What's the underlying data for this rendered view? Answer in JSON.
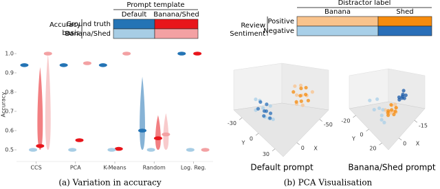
{
  "chart_data": [
    {
      "type": "strip",
      "caption": "(a) Variation in accuracy",
      "ylabel": "Accuracy",
      "categories": [
        "CCS",
        "PCA",
        "K-Means",
        "Random",
        "Log. Reg."
      ],
      "ylim": [
        0.45,
        1.02
      ],
      "yticks": [
        0.5,
        0.6,
        0.7,
        0.8,
        0.9,
        {
          "value": 1.0,
          "label": "1.0"
        }
      ],
      "legend": {
        "title": "Prompt template",
        "columns": [
          "Default",
          "Banana/Shed"
        ],
        "row_title": "Accuracy basis",
        "rows": [
          "Ground truth",
          "Banana/Shed"
        ]
      },
      "series": [
        {
          "color": "#2474b5",
          "values": [
            0.94,
            0.94,
            0.94,
            0.6,
            1.0
          ],
          "ranges": [
            null,
            null,
            null,
            [
              0.5,
              0.88
            ],
            null
          ]
        },
        {
          "color": "#e8151b",
          "values": [
            0.52,
            0.55,
            0.505,
            0.56,
            1.0
          ],
          "ranges": [
            [
              0.5,
              0.93
            ],
            null,
            null,
            [
              0.5,
              0.68
            ],
            null
          ]
        },
        {
          "color": "#a7cde5",
          "values": [
            0.5,
            0.5,
            0.5,
            0.5,
            0.5
          ],
          "ranges": [
            null,
            null,
            null,
            null,
            null
          ]
        },
        {
          "color": "#f3a1a3",
          "values": [
            1.0,
            0.95,
            1.0,
            0.58,
            0.5
          ],
          "ranges": [
            [
              0.5,
              1.0
            ],
            null,
            null,
            [
              0.5,
              0.69
            ],
            null
          ]
        }
      ]
    },
    {
      "type": "scatter3d",
      "title": "Default prompt",
      "caption": "(b) PCA Visualisation",
      "xlabel": "X",
      "ylabel": "Y",
      "xlim": [
        -70,
        30
      ],
      "xticks": [
        -50,
        0
      ],
      "ylim": [
        -45,
        45
      ],
      "yticks": [
        -30,
        0,
        30
      ],
      "legend": {
        "title": "Distractor label",
        "columns": [
          "Banana",
          "Shed"
        ],
        "row_title": "Review Sentiment",
        "rows": [
          "Positive",
          "Negative"
        ]
      },
      "series": [
        {
          "color": "#f9c38c",
          "x": [
            -30,
            -40,
            -25,
            -45,
            -35,
            -20,
            -50,
            -38
          ],
          "y": [
            20,
            30,
            35,
            15,
            25,
            28,
            32,
            10
          ]
        },
        {
          "color": "#f68b0c",
          "x": [
            -33,
            -42,
            -28,
            -36,
            -48,
            -22,
            -40,
            -30
          ],
          "y": [
            24,
            18,
            30,
            36,
            22,
            26,
            28,
            14
          ]
        },
        {
          "color": "#a8cfe8",
          "x": [
            20,
            28,
            15,
            25,
            10,
            30,
            22,
            18
          ],
          "y": [
            0,
            10,
            -10,
            15,
            5,
            -5,
            20,
            -15
          ]
        },
        {
          "color": "#2a6fb8",
          "x": [
            22,
            26,
            18,
            12,
            28,
            24,
            16,
            20
          ],
          "y": [
            4,
            -4,
            12,
            0,
            8,
            16,
            -8,
            6
          ]
        }
      ]
    },
    {
      "type": "scatter3d",
      "title": "Banana/Shed prompt",
      "xlabel": "X",
      "ylabel": "Y",
      "xlim": [
        -25,
        10
      ],
      "xticks": [
        -15,
        0
      ],
      "ylim": [
        -30,
        30
      ],
      "yticks": [
        -20,
        0,
        20
      ],
      "series": [
        {
          "color": "#f9c38c",
          "x": [
            -2,
            2,
            0,
            -4,
            3,
            -1,
            1,
            -3
          ],
          "y": [
            16,
            20,
            22,
            18,
            14,
            24,
            19,
            21
          ]
        },
        {
          "color": "#f68b0c",
          "x": [
            0,
            -3,
            2,
            -1,
            4,
            -2,
            1,
            3
          ],
          "y": [
            19,
            21,
            17,
            23,
            20,
            15,
            24,
            18
          ]
        },
        {
          "color": "#a8cfe8",
          "x": [
            8,
            4,
            9,
            2,
            6,
            9,
            5,
            7
          ],
          "y": [
            5,
            12,
            18,
            0,
            -5,
            22,
            8,
            15
          ]
        },
        {
          "color": "#1a5aa8",
          "x": [
            -11,
            -9,
            -13,
            -10,
            -12,
            -8,
            -11,
            -14
          ],
          "y": [
            18,
            16,
            20,
            19,
            17,
            18,
            21,
            15
          ]
        }
      ]
    }
  ]
}
